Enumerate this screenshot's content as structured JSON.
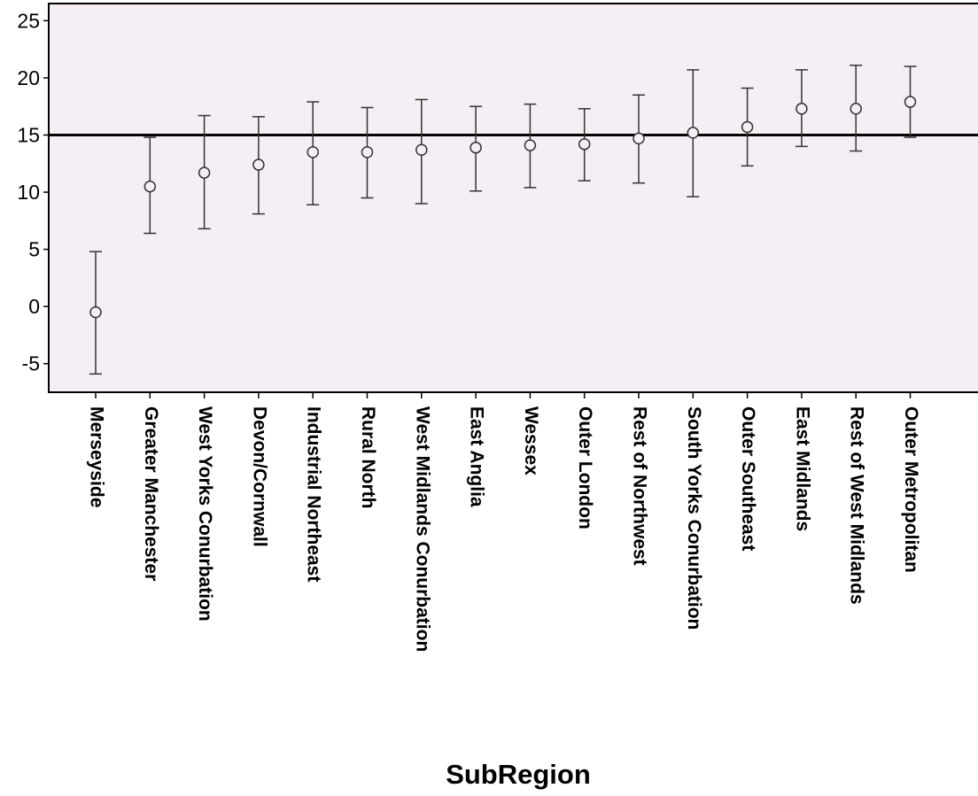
{
  "chart_data": {
    "type": "scatter",
    "subtype": "error-bar",
    "xlabel": "SubRegion",
    "ylabel": "",
    "title": "",
    "ylim": [
      -7.5,
      26.5
    ],
    "yticks": [
      25,
      20,
      15,
      10,
      5,
      0,
      -5
    ],
    "ytick_labels": [
      "25",
      "20",
      "15",
      "10",
      "5",
      "0",
      "-5"
    ],
    "reference_line": 15,
    "grid": false,
    "plot_background": "#f5eff5",
    "categories": [
      "Merseyside",
      "Greater Manchester",
      "West Yorks Conurbation",
      "Devon/Cornwall",
      "Industrial Northeast",
      "Rural North",
      "West Midlands Conurbation",
      "East Anglia",
      "Wessex",
      "Outer London",
      "Rest of Northwest",
      "South Yorks Conurbation",
      "Outer Southeast",
      "East Midlands",
      "Rest of West Midlands",
      "Outer Metropolitan"
    ],
    "series": [
      {
        "means": [
          -0.5,
          10.5,
          11.7,
          12.4,
          13.5,
          13.5,
          13.7,
          13.9,
          14.1,
          14.2,
          14.7,
          15.2,
          15.7,
          17.3,
          17.3,
          17.9
        ],
        "lower": [
          -5.9,
          6.4,
          6.8,
          8.1,
          8.9,
          9.5,
          9.0,
          10.1,
          10.4,
          11.0,
          10.8,
          9.6,
          12.3,
          14.0,
          13.6,
          14.8
        ],
        "upper": [
          4.8,
          14.8,
          16.7,
          16.6,
          17.9,
          17.4,
          18.1,
          17.5,
          17.7,
          17.3,
          18.5,
          20.7,
          19.1,
          20.7,
          21.1,
          21.0
        ]
      }
    ]
  }
}
